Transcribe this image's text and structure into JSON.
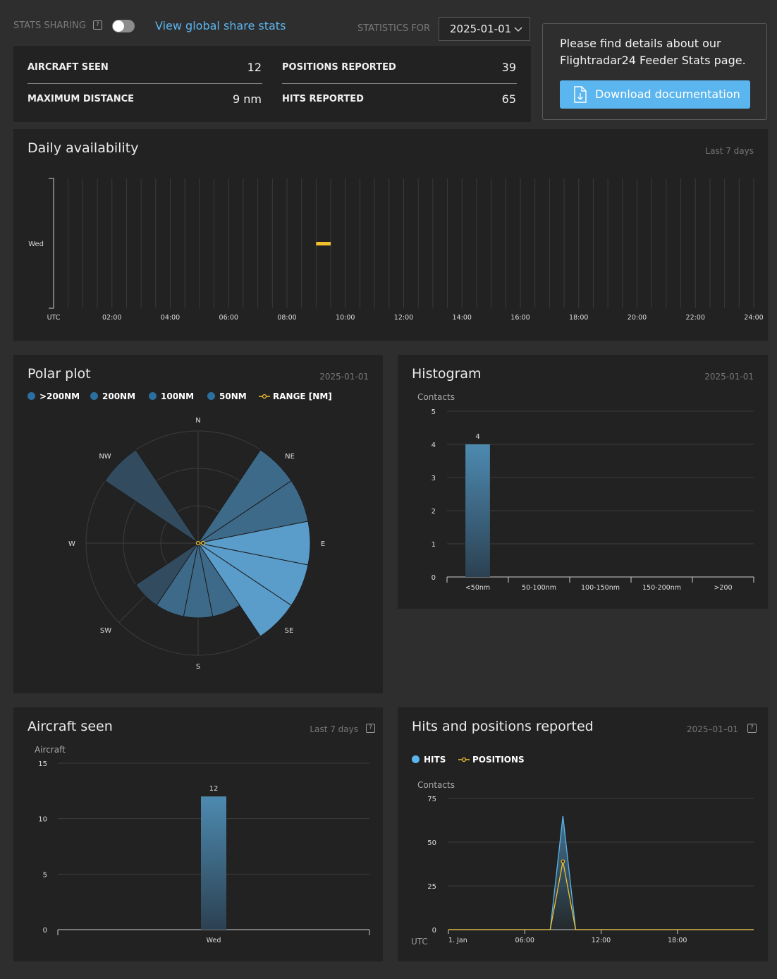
{
  "header": {
    "stats_sharing_label": "STATS SHARING",
    "stats_sharing_on": false,
    "global_link": "View global share stats",
    "statistics_for_label": "STATISTICS FOR",
    "date_value": "2025-01-01"
  },
  "summary": {
    "aircraft_seen_label": "AIRCRAFT SEEN",
    "aircraft_seen_value": "12",
    "positions_reported_label": "POSITIONS REPORTED",
    "positions_reported_value": "39",
    "maximum_distance_label": "MAXIMUM DISTANCE",
    "maximum_distance_value": "9 nm",
    "hits_reported_label": "HITS REPORTED",
    "hits_reported_value": "65"
  },
  "info_box": {
    "text_line1": "Please find details about our",
    "text_line2": "Flightradar24 Feeder Stats page.",
    "button_label": "Download documentation"
  },
  "daily": {
    "title": "Daily availability",
    "period": "Last 7 days",
    "day_label": "Wed",
    "x_labels": [
      "UTC",
      "02:00",
      "04:00",
      "06:00",
      "08:00",
      "10:00",
      "12:00",
      "14:00",
      "16:00",
      "18:00",
      "20:00",
      "22:00",
      "24:00"
    ]
  },
  "polar": {
    "title": "Polar plot",
    "date": "2025-01-01",
    "legend": [
      ">200NM",
      "200NM",
      "100NM",
      "50NM",
      "RANGE [NM]"
    ],
    "directions": {
      "n": "N",
      "ne": "NE",
      "e": "E",
      "se": "SE",
      "s": "S",
      "sw": "SW",
      "w": "W",
      "nw": "NW"
    }
  },
  "histogram": {
    "title": "Histogram",
    "date": "2025-01-01",
    "ylabel": "Contacts"
  },
  "aircraft_chart": {
    "title": "Aircraft seen",
    "period": "Last 7 days",
    "ylabel": "Aircraft"
  },
  "hits_chart": {
    "title": "Hits and positions reported",
    "date": "2025–01–01",
    "legend_hits": "HITS",
    "legend_positions": "POSITIONS",
    "ylabel": "Contacts",
    "xaxis_utc": "UTC"
  },
  "colors": {
    "accent": "#5bb5ee",
    "gold": "#f3c02d",
    "bar": "#447fa3",
    "panel": "#222222",
    "page": "#2e2e2e"
  },
  "chart_data": [
    {
      "type": "heatmap",
      "title": "Daily availability",
      "rows": [
        "Wed"
      ],
      "x_start": "00:00",
      "x_end": "24:00",
      "x_unit": "UTC hours",
      "x_ticks": [
        "UTC",
        "02:00",
        "04:00",
        "06:00",
        "08:00",
        "10:00",
        "12:00",
        "14:00",
        "16:00",
        "18:00",
        "20:00",
        "22:00",
        "24:00"
      ],
      "available_intervals": [
        {
          "row": "Wed",
          "start_hour": 9.0,
          "end_hour": 9.5
        }
      ]
    },
    {
      "type": "polar",
      "title": "Polar plot",
      "sectors": [
        "N",
        "NNE",
        "NE",
        "ENE",
        "E",
        "ESE",
        "SE",
        "SSE",
        "S",
        "SSW",
        "SW",
        "WSW",
        "W",
        "WNW",
        "NW",
        "NNW"
      ],
      "sector_values": [
        0,
        0,
        3,
        3,
        3,
        3,
        3,
        2,
        2,
        2,
        2,
        0,
        0,
        0,
        3,
        0
      ],
      "sector_series": [
        null,
        null,
        "200NM",
        "200NM",
        "100NM",
        "100NM",
        "100NM",
        "200NM",
        "200NM",
        "200NM",
        ">200NM",
        null,
        null,
        null,
        ">200NM",
        null
      ],
      "rings": 3,
      "range_nm": {
        "E": 9
      }
    },
    {
      "type": "bar",
      "title": "Histogram",
      "ylabel": "Contacts",
      "categories": [
        "<50nm",
        "50-100nm",
        "100-150nm",
        "150-200nm",
        ">200"
      ],
      "values": [
        4,
        0,
        0,
        0,
        0
      ],
      "ylim": [
        0,
        5
      ],
      "yticks": [
        0,
        1,
        2,
        3,
        4,
        5
      ]
    },
    {
      "type": "bar",
      "title": "Aircraft seen",
      "ylabel": "Aircraft",
      "categories": [
        "Wed"
      ],
      "values": [
        12
      ],
      "ylim": [
        0,
        15
      ],
      "yticks": [
        0,
        5,
        10,
        15
      ]
    },
    {
      "type": "line",
      "title": "Hits and positions reported",
      "ylabel": "Contacts",
      "x_ticks": [
        "1. Jan",
        "06:00",
        "12:00",
        "18:00"
      ],
      "x_hours": [
        0,
        8,
        9,
        10,
        24
      ],
      "ylim": [
        0,
        75
      ],
      "yticks": [
        0,
        25,
        50,
        75
      ],
      "series": [
        {
          "name": "HITS",
          "values": [
            0,
            0,
            65,
            0,
            0
          ]
        },
        {
          "name": "POSITIONS",
          "values": [
            0,
            0,
            39,
            0,
            0
          ]
        }
      ]
    }
  ]
}
